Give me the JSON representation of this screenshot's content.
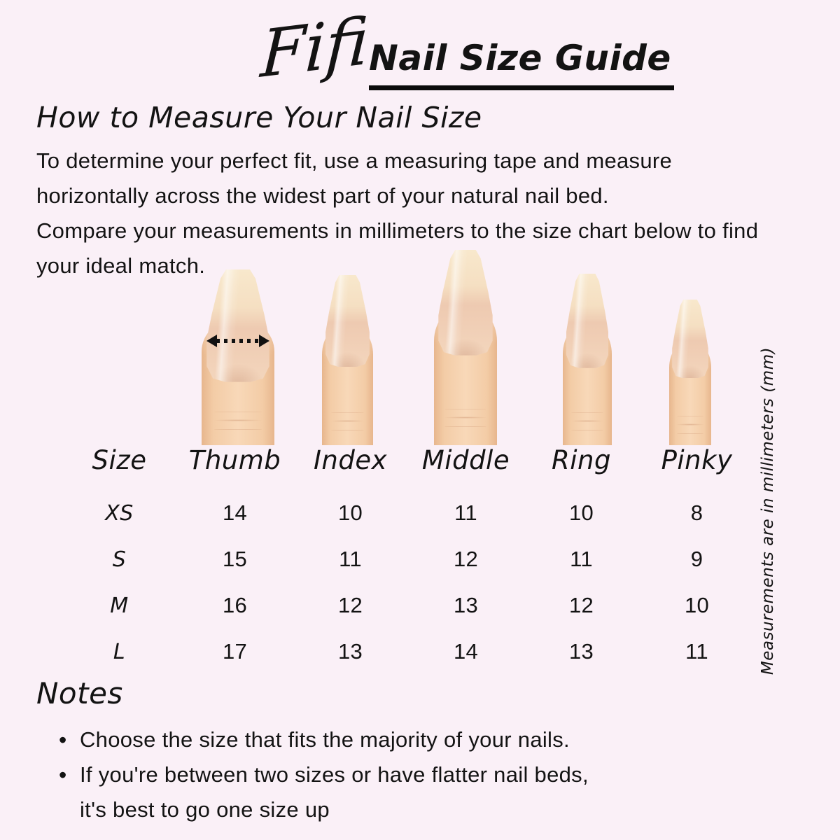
{
  "page": {
    "background_color": "#faf0f7",
    "text_color": "#131313"
  },
  "brand": {
    "logo_text": "Fifi"
  },
  "header": {
    "title": "Nail Size Guide"
  },
  "how_to": {
    "heading": "How to Measure Your Nail Size",
    "lines": [
      "To determine your perfect fit, use a measuring tape and measure",
      "horizontally across the widest part of your natural nail bed.",
      "Compare your measurements in millimeters to the size chart below to find",
      "your ideal match."
    ]
  },
  "fingers": {
    "skin_color": "#f3cca6",
    "nail_tip_color": "#f5e2c5",
    "nail_bed_color": "#eecab1",
    "arrow_color": "#111111"
  },
  "size_table": {
    "headers": [
      "Size",
      "Thumb",
      "Index",
      "Middle",
      "Ring",
      "Pinky"
    ],
    "rows": [
      {
        "size": "XS",
        "values": [
          "14",
          "10",
          "11",
          "10",
          "8"
        ]
      },
      {
        "size": "S",
        "values": [
          "15",
          "11",
          "12",
          "11",
          "9"
        ]
      },
      {
        "size": "M",
        "values": [
          "16",
          "12",
          "13",
          "12",
          "10"
        ]
      },
      {
        "size": "L",
        "values": [
          "17",
          "13",
          "14",
          "13",
          "11"
        ]
      }
    ]
  },
  "side_note": "Measurements are in millimeters (mm)",
  "notes": {
    "heading": "Notes",
    "items": [
      {
        "lines": [
          "Choose the size that fits the majority of your nails."
        ]
      },
      {
        "lines": [
          "If you're between two sizes or have flatter nail beds,",
          "it's best to go one size up"
        ]
      }
    ]
  }
}
